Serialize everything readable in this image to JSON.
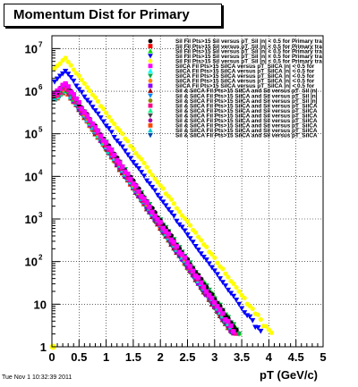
{
  "title": "Momentum Dist for Primary",
  "timestamp": "Tue Nov  1 10:32:39 2011",
  "chart_data": {
    "type": "scatter",
    "title": "Momentum Dist for Primary",
    "xlabel": "pT (GeV/c)",
    "ylabel": "",
    "xlim": [
      0,
      5
    ],
    "ylim": [
      1,
      20000000
    ],
    "log_y": true,
    "grid": true,
    "x_ticks": [
      "0",
      "0.5",
      "1",
      "1.5",
      "2",
      "2.5",
      "3",
      "3.5",
      "4",
      "4.5",
      "5"
    ],
    "y_ticks": [
      {
        "base": "1",
        "exp": ""
      },
      {
        "base": "10",
        "exp": ""
      },
      {
        "base": "10",
        "exp": "2"
      },
      {
        "base": "10",
        "exp": "3"
      },
      {
        "base": "10",
        "exp": "4"
      },
      {
        "base": "10",
        "exp": "5"
      },
      {
        "base": "10",
        "exp": "6"
      },
      {
        "base": "10",
        "exp": "7"
      }
    ],
    "legend_position": "top-right",
    "series": [
      {
        "name": "Sil Fil Pts>15 Sil versus pT_Sil |n| < 0.5 for Primary tra",
        "color": "#000000",
        "marker": "circle",
        "peak": 1500000,
        "slope": 2.0,
        "noise": 0.05
      },
      {
        "name": "Sil Fil Pts>15 Sil versus pT_Sil |n| < 0.5 for Primary tra",
        "color": "#ff0000",
        "marker": "square",
        "peak": 1100000,
        "slope": 2.0,
        "noise": 0.05
      },
      {
        "name": "Sil Fil Pts>15 Sil versus pT_Sil |n| < 0.5 for Primary tra",
        "color": "#00dd00",
        "marker": "triangle-up",
        "peak": 1300000,
        "slope": 1.96,
        "noise": 0.06
      },
      {
        "name": "Sil Fil Pts>15 Sil versus pT_Sil |n| < 0.5 for Primary tra",
        "color": "#0000ff",
        "marker": "triangle-down",
        "peak": 3000000,
        "slope": 1.86,
        "noise": 0.04
      },
      {
        "name": "Sil Fil Pts>15 Sil versus pT_Sil |n| < 0.5 for Primary tra",
        "color": "#ffff00",
        "marker": "circle",
        "peak": 6000000,
        "slope": 1.86,
        "noise": 0.04
      },
      {
        "name": "SilCA Fil Pts>15 SilCA versus pT_SilCA |n| < 0.5 for",
        "color": "#ff00ff",
        "marker": "square",
        "peak": 1500000,
        "slope": 2.03,
        "noise": 0.06
      },
      {
        "name": "SilCA Fil Pts>15 SilCA versus pT_SilCA |n| < 0.5 for",
        "color": "#00ffff",
        "marker": "triangle-up",
        "peak": 1200000,
        "slope": 2.0,
        "noise": 0.06
      },
      {
        "name": "SilCA Fil Pts>15 SilCA versus pT_SilCA |n| < 0.5 for",
        "color": "#00aa44",
        "marker": "triangle-down",
        "peak": 1400000,
        "slope": 1.98,
        "noise": 0.06
      },
      {
        "name": "SilCA Fil Pts>15 SilCA versus pT_SilCA |n| < 0.5 for",
        "color": "#ff8800",
        "marker": "circle",
        "peak": 1300000,
        "slope": 2.0,
        "noise": 0.05
      },
      {
        "name": "SilCA Fil Pts>15 SilCA versus pT_SilCA |n| < 0.5 for",
        "color": "#8800ff",
        "marker": "square",
        "peak": 1200000,
        "slope": 2.02,
        "noise": 0.06
      },
      {
        "name": "Sil & SilCA Fil Pts>15 SilCA and Sil versus pT_Sil |n|",
        "color": "#aa0000",
        "marker": "triangle-up",
        "peak": 1100000,
        "slope": 2.02,
        "noise": 0.05
      },
      {
        "name": "Sil & SilCA Fil Pts>15 SilCA and Sil versus pT_Sil |n|",
        "color": "#0088ff",
        "marker": "triangle-down",
        "peak": 1200000,
        "slope": 2.0,
        "noise": 0.06
      },
      {
        "name": "Sil & SilCA Fil Pts>15 SilCA and Sil versus pT_Sil |n|",
        "color": "#888800",
        "marker": "circle",
        "peak": 1100000,
        "slope": 2.02,
        "noise": 0.06
      },
      {
        "name": "Sil & SilCA Fil Pts>15 SilCA and Sil versus pT_SilCA",
        "color": "#ff0088",
        "marker": "square",
        "peak": 1300000,
        "slope": 2.0,
        "noise": 0.06
      },
      {
        "name": "Sil & SilCA Fil Pts>15 SilCA and Sil versus pT_SilCA",
        "color": "#00ff88",
        "marker": "triangle-up",
        "peak": 1200000,
        "slope": 2.0,
        "noise": 0.06
      },
      {
        "name": "Sil & SilCA Fil Pts>15 SilCA and Sil versus pT_SilCA",
        "color": "#444444",
        "marker": "triangle-down",
        "peak": 1100000,
        "slope": 2.03,
        "noise": 0.06
      },
      {
        "name": "Sil & SilCA Fil Pts>15 SilCA and Sil versus pT_SilCA",
        "color": "#aa00aa",
        "marker": "circle",
        "peak": 1200000,
        "slope": 2.02,
        "noise": 0.06
      },
      {
        "name": "Sil & SilCA Fil Pts>15 SilCA and Sil versus pT_SilCA",
        "color": "#ff4400",
        "marker": "square",
        "peak": 1100000,
        "slope": 2.0,
        "noise": 0.06
      },
      {
        "name": "Sil & SilCA Fil Pts>15 SilCA and Sil versus pT_SilCA",
        "color": "#00cccc",
        "marker": "triangle-up",
        "peak": 1200000,
        "slope": 2.0,
        "noise": 0.06
      },
      {
        "name": "Sil & SilCA Fil Pts>15 SilCA and Sil versus pT_SilCA",
        "color": "#0044aa",
        "marker": "triangle-down",
        "peak": 1100000,
        "slope": 2.02,
        "noise": 0.06
      }
    ]
  }
}
